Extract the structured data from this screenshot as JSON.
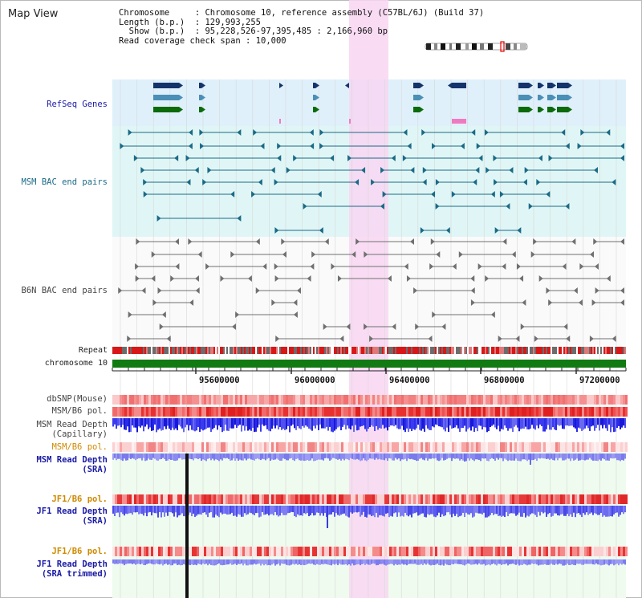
{
  "title": "Map View",
  "info": {
    "line1": "Chromosome     : Chromosome 10, reference assembly (C57BL/6J) (Build 37)",
    "line2": "Length (b.p.)  : 129,993,255",
    "line3": "  Show (b.p.)  : 95,228,526-97,395,485 : 2,166,960 bp",
    "line4": "Read coverage check span : 10,000"
  },
  "labels": {
    "refseq": "RefSeq Genes",
    "msm_bac": "MSM BAC end pairs",
    "b6n_bac": "B6N BAC end pairs",
    "repeat": "Repeat",
    "chromosome": "chromosome 10",
    "dbsnp": "dbSNP(Mouse)",
    "msm_b6_pol_1": "MSM/B6 pol.",
    "msm_read_depth_cap_1": "MSM Read Depth",
    "msm_read_depth_cap_2": "(Capillary)",
    "msm_b6_pol_2": "MSM/B6 pol.",
    "msm_read_depth_sra_1": "MSM Read Depth",
    "msm_read_depth_sra_2": "(SRA)",
    "jf1_b6_pol_1": "JF1/B6 pol.",
    "jf1_read_depth_sra_1": "JF1 Read Depth",
    "jf1_read_depth_sra_2": "(SRA)",
    "jf1_b6_pol_2": "JF1/B6 pol.",
    "jf1_read_depth_trim_1": "JF1 Read Depth",
    "jf1_read_depth_trim_2": "(SRA trimmed)"
  },
  "axis": {
    "ticks": [
      "95600000",
      "96000000",
      "96400000",
      "96800000",
      "97200000"
    ],
    "range": [
      95228526,
      97395485
    ]
  },
  "colors": {
    "highlight": "#f8d6f2",
    "refseq_bg": "#dff0fb",
    "msm_bg": "#e0f6f6",
    "b6n_bg": "#f2f2f2",
    "sra_bg": "#eefbee",
    "gene_navy": "#14336b",
    "gene_steel": "#4a8fb5",
    "gene_green": "#0b6b0b",
    "msm_line": "#1b6a86",
    "b6n_line": "#707070",
    "chromosome": "#127a12",
    "depth_blue": "#2a2ae0",
    "depth_light": "#8a8af0"
  }
}
